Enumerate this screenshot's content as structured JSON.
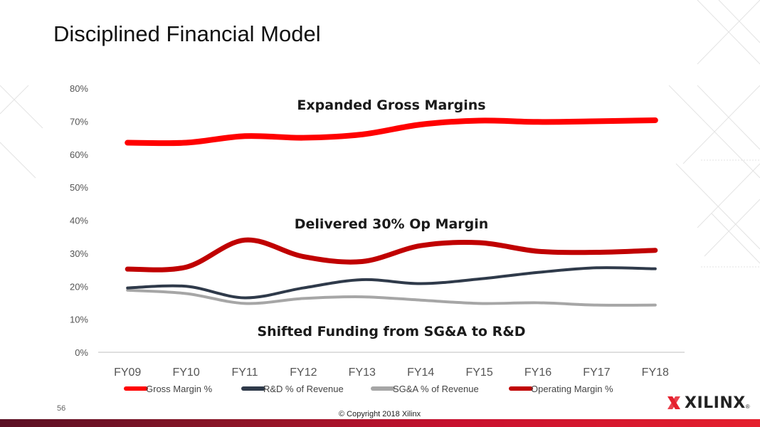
{
  "slide": {
    "title": "Disciplined Financial Model",
    "page_number": "56",
    "copyright": "© Copyright 2018 Xilinx",
    "logo_text": "XILINX",
    "logo_mark": "®"
  },
  "colors": {
    "gross_margin": "#ff0000",
    "rd": "#2f3a4a",
    "sga": "#a6a6a6",
    "operating_margin": "#c00000",
    "accent_bar": "#c8102e"
  },
  "chart_data": {
    "type": "line",
    "categories": [
      "FY09",
      "FY10",
      "FY11",
      "FY12",
      "FY13",
      "FY14",
      "FY15",
      "FY16",
      "FY17",
      "FY18"
    ],
    "y_ticks": [
      "0%",
      "10%",
      "20%",
      "30%",
      "40%",
      "50%",
      "60%",
      "70%",
      "80%"
    ],
    "ylim": [
      0,
      80
    ],
    "grid": false,
    "legend_position": "bottom",
    "series": [
      {
        "name": "Gross Margin %",
        "color": "#ff0000",
        "width": 8,
        "values": [
          63.5,
          63.5,
          65.5,
          65,
          66,
          69,
          70.2,
          69.8,
          70,
          70.3
        ]
      },
      {
        "name": "R&D % of Revenue",
        "color": "#2f3a4a",
        "width": 4,
        "values": [
          19.5,
          20,
          16.5,
          19.5,
          22,
          20.8,
          22.2,
          24.2,
          25.6,
          25.3
        ]
      },
      {
        "name": "SG&A % of Revenue",
        "color": "#a6a6a6",
        "width": 4,
        "values": [
          18.8,
          17.8,
          14.8,
          16.3,
          16.8,
          15.8,
          14.8,
          15,
          14.3,
          14.3
        ]
      },
      {
        "name": "Operating Margin %",
        "color": "#c00000",
        "width": 7,
        "values": [
          25.2,
          25.8,
          34,
          29,
          27.5,
          32.3,
          33.2,
          30.6,
          30.3,
          30.9
        ]
      }
    ],
    "annotations": [
      {
        "text": "Expanded Gross Margins",
        "y": 75
      },
      {
        "text": "Delivered 30% Op Margin",
        "y": 39
      },
      {
        "text": "Shifted Funding from SG&A to R&D",
        "y": 6.5
      }
    ]
  }
}
